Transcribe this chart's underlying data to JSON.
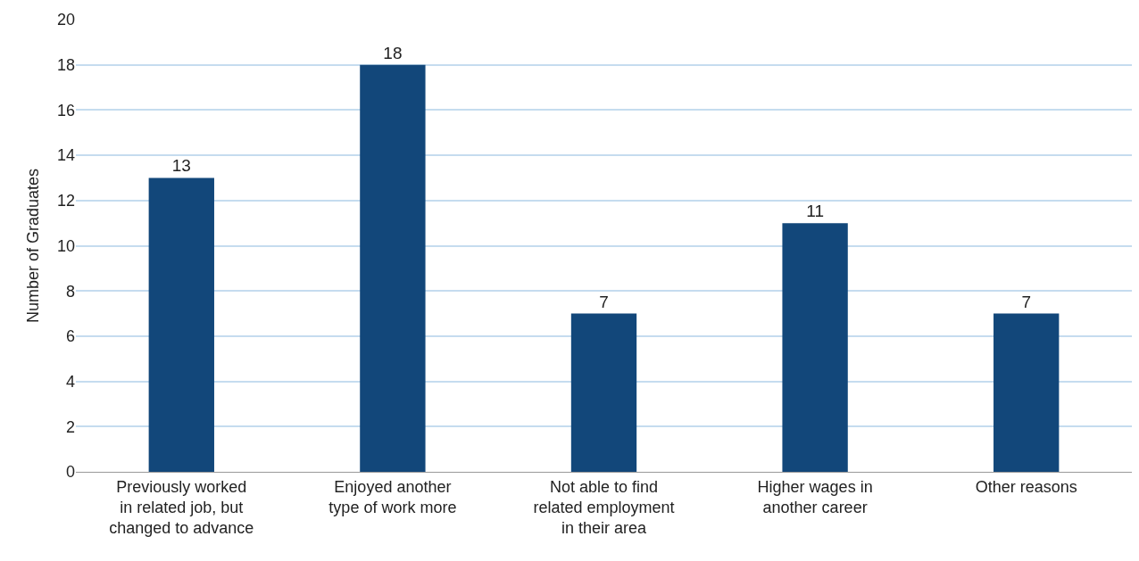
{
  "chart_data": {
    "type": "bar",
    "ylabel": "Number of Graduates",
    "categories": [
      "Previously worked\nin related job, but\nchanged to advance",
      "Enjoyed another\ntype of work more",
      "Not able to find\nrelated employment\nin their area",
      "Higher wages in\nanother career",
      "Other reasons"
    ],
    "values": [
      13,
      18,
      7,
      11,
      7
    ],
    "color": "#12477a",
    "ylim": [
      0,
      20
    ],
    "yticks": [
      0,
      2,
      4,
      6,
      8,
      10,
      12,
      14,
      16,
      18,
      20
    ],
    "grid": "y",
    "data_labels": true
  }
}
